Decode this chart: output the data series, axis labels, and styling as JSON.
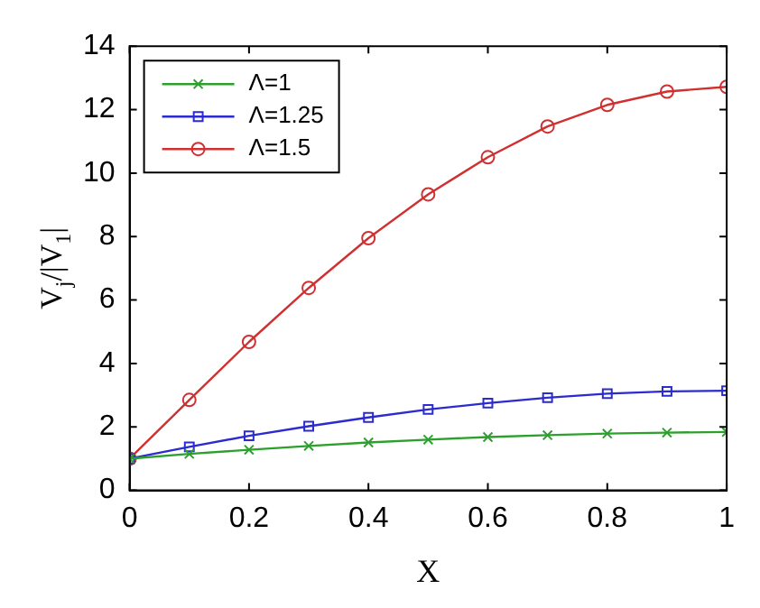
{
  "chart_data": {
    "type": "line",
    "xlabel": "X",
    "ylabel": "V$_{j}$/|V$_{1}$|",
    "x": [
      0,
      0.1,
      0.2,
      0.3,
      0.4,
      0.5,
      0.6,
      0.7,
      0.8,
      0.9,
      1
    ],
    "series": [
      {
        "name": "Λ=1",
        "color": "#2ca02c",
        "marker": "cross",
        "values": [
          1,
          1.15,
          1.28,
          1.4,
          1.51,
          1.6,
          1.68,
          1.74,
          1.79,
          1.82,
          1.84
        ]
      },
      {
        "name": "Λ=1.25",
        "color": "#2b2bd0",
        "marker": "square",
        "values": [
          1,
          1.37,
          1.72,
          2.02,
          2.3,
          2.55,
          2.75,
          2.92,
          3.05,
          3.12,
          3.14
        ]
      },
      {
        "name": "Λ=1.5",
        "color": "#d03030",
        "marker": "circle",
        "values": [
          1,
          2.85,
          4.68,
          6.38,
          7.95,
          9.33,
          10.5,
          11.47,
          12.15,
          12.57,
          12.72
        ]
      }
    ],
    "xlim": [
      0,
      1
    ],
    "xticks": [
      0,
      0.2,
      0.4,
      0.6,
      0.8,
      1
    ],
    "ylim": [
      0,
      14
    ],
    "yticks": [
      0,
      2,
      4,
      6,
      8,
      10,
      12,
      14
    ],
    "grid": false,
    "legend": "top left",
    "line_style": "solid"
  }
}
